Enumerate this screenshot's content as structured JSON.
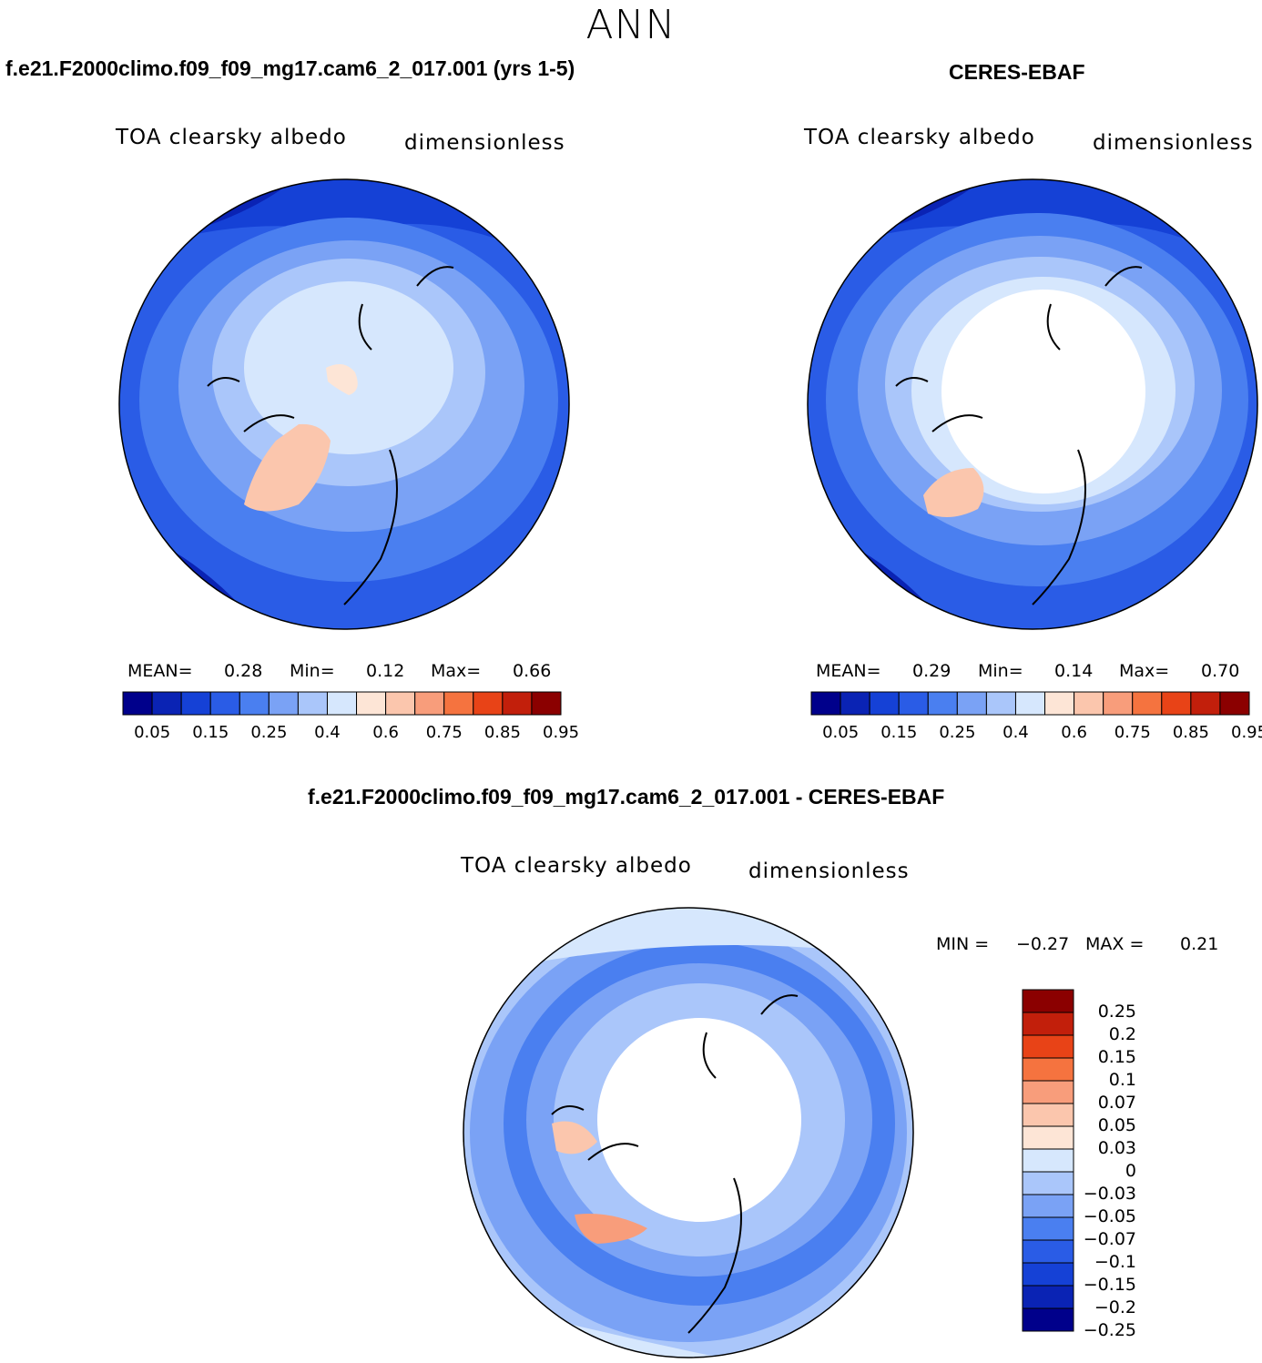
{
  "title": "ANN",
  "panels": [
    {
      "case": "f.e21.F2000climo.f09_f09_mg17.cam6_2_017.001 (yrs 1-5)",
      "variable": "TOA clearsky albedo",
      "units": "dimensionless",
      "stats": {
        "mean_label": "MEAN=",
        "mean": "0.28",
        "min_label": "Min=",
        "min": "0.12",
        "max_label": "Max=",
        "max": "0.66"
      }
    },
    {
      "case": "CERES-EBAF",
      "variable": "TOA clearsky albedo",
      "units": "dimensionless",
      "stats": {
        "mean_label": "MEAN=",
        "mean": "0.29",
        "min_label": "Min=",
        "min": "0.14",
        "max_label": "Max=",
        "max": "0.70"
      }
    }
  ],
  "colorbar": {
    "colors": [
      "#00008b",
      "#0a23b4",
      "#1541d6",
      "#2a5ce6",
      "#4a7ff0",
      "#7aa2f5",
      "#aac6fa",
      "#d6e7fd",
      "#fde5d6",
      "#fbc6ad",
      "#f89d7b",
      "#f5733f",
      "#e84317",
      "#c21f0b",
      "#8b0000"
    ],
    "labels": [
      "0.05",
      "0.15",
      "0.25",
      "0.4",
      "0.6",
      "0.75",
      "0.85",
      "0.95"
    ]
  },
  "diff": {
    "case": "f.e21.F2000climo.f09_f09_mg17.cam6_2_017.001 - CERES-EBAF",
    "variable": "TOA clearsky albedo",
    "units": "dimensionless",
    "min_label": "MIN =",
    "min": "−0.27",
    "max_label": "MAX =",
    "max": "0.21",
    "colorbar": {
      "colors": [
        "#8b0000",
        "#c21f0b",
        "#e84317",
        "#f5733f",
        "#f89d7b",
        "#fbc6ad",
        "#fde5d6",
        "#d6e7fd",
        "#aac6fa",
        "#7aa2f5",
        "#4a7ff0",
        "#2a5ce6",
        "#1541d6",
        "#0a23b4",
        "#00008b"
      ],
      "labels": [
        "0.25",
        "0.2",
        "0.15",
        "0.1",
        "0.07",
        "0.05",
        "0.03",
        "0",
        "−0.03",
        "−0.05",
        "−0.07",
        "−0.1",
        "−0.15",
        "−0.2",
        "−0.25"
      ]
    }
  }
}
